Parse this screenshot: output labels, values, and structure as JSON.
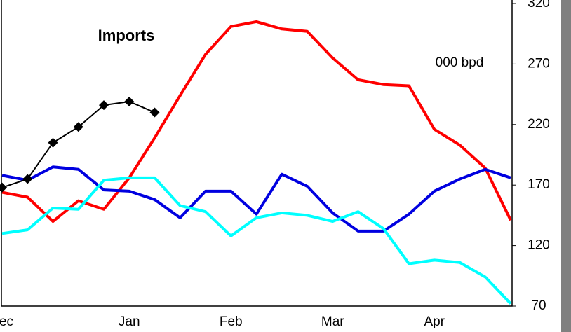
{
  "chart_data": {
    "type": "line",
    "title": "Imports",
    "annotation": "000 bpd",
    "categories": [
      "ec",
      null,
      null,
      null,
      null,
      "Jan",
      null,
      null,
      null,
      "Feb",
      null,
      null,
      null,
      "Mar",
      null,
      null,
      null,
      "Apr",
      null,
      null,
      null
    ],
    "series": [
      {
        "color": "#ff0000",
        "values": [
          164,
          160,
          140,
          157,
          150,
          176,
          209,
          244,
          278,
          301,
          305,
          299,
          297,
          275,
          257,
          253,
          252,
          216,
          203,
          184,
          141
        ]
      },
      {
        "color": "#0000e0",
        "values": [
          178,
          174,
          185,
          183,
          166,
          165,
          158,
          143,
          165,
          165,
          146,
          179,
          169,
          147,
          132,
          132,
          146,
          165,
          175,
          183,
          176
        ]
      },
      {
        "color": "#00ffff",
        "values": [
          130,
          133,
          151,
          150,
          174,
          176,
          176,
          153,
          148,
          128,
          143,
          147,
          145,
          140,
          148,
          134,
          105,
          108,
          106,
          94,
          72
        ]
      },
      {
        "color": "#000000",
        "marker": "diamond",
        "values": [
          168,
          175,
          205,
          218,
          236,
          239,
          230,
          null,
          null,
          null,
          null,
          null,
          null,
          null,
          null,
          null,
          null,
          null,
          null,
          null,
          null
        ]
      }
    ],
    "ylim": [
      70,
      320
    ],
    "yticks": [
      70,
      120,
      170,
      220,
      270,
      320
    ],
    "y_axis_side": "right"
  }
}
